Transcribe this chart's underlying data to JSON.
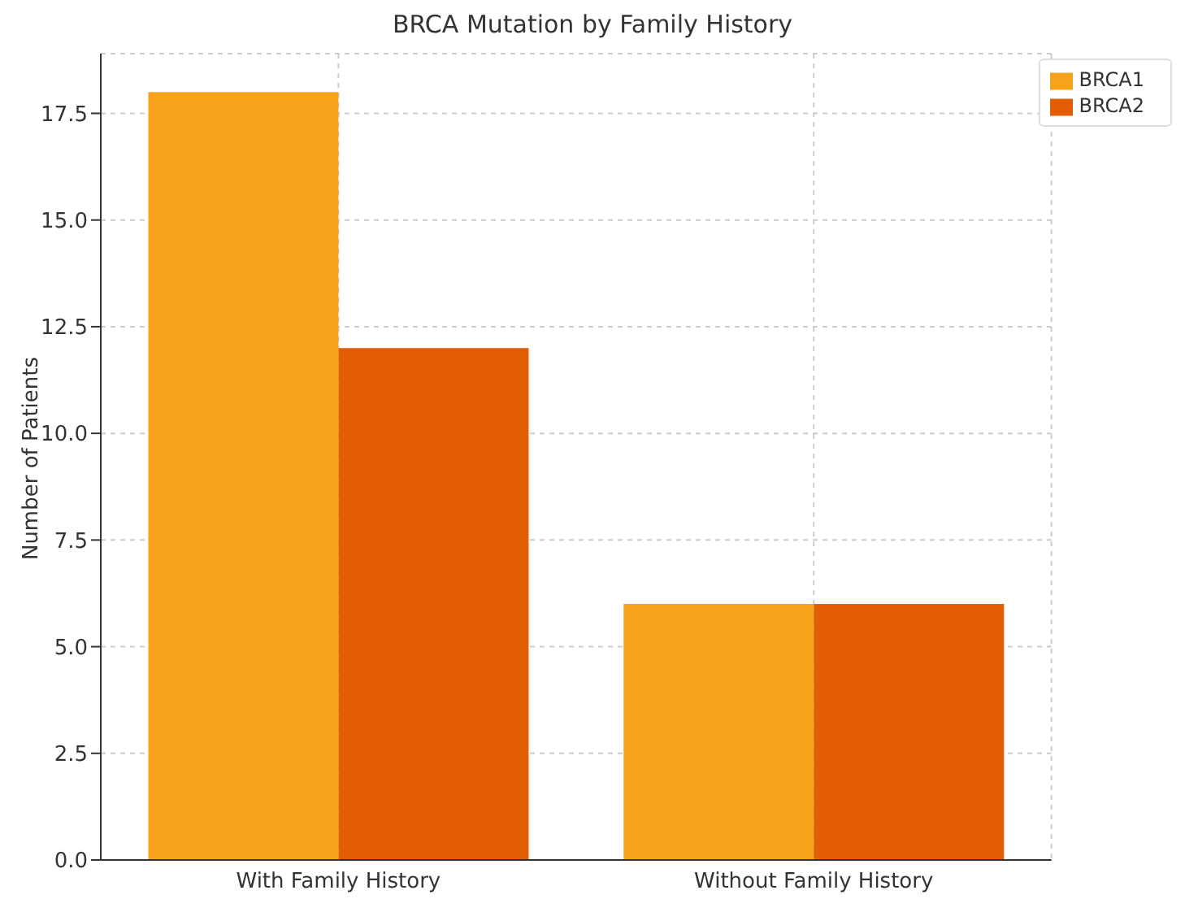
{
  "chart_data": {
    "type": "bar",
    "title": "BRCA Mutation by Family History",
    "ylabel": "Number of Patients",
    "categories": [
      "With Family History",
      "Without Family History"
    ],
    "series": [
      {
        "name": "BRCA1",
        "color": "#f7a21b",
        "values": [
          18,
          6
        ]
      },
      {
        "name": "BRCA2",
        "color": "#e35d04",
        "values": [
          12,
          6
        ]
      }
    ],
    "ylim": [
      0,
      18.9
    ],
    "yticks": [
      {
        "value": 0,
        "label": "0.0"
      },
      {
        "value": 2.5,
        "label": "2.5"
      },
      {
        "value": 5,
        "label": "5.0"
      },
      {
        "value": 7.5,
        "label": "7.5"
      },
      {
        "value": 10,
        "label": "10.0"
      },
      {
        "value": 12.5,
        "label": "12.5"
      },
      {
        "value": 15,
        "label": "15.0"
      },
      {
        "value": 17.5,
        "label": "17.5"
      }
    ],
    "grid": true,
    "legend": "top right"
  }
}
